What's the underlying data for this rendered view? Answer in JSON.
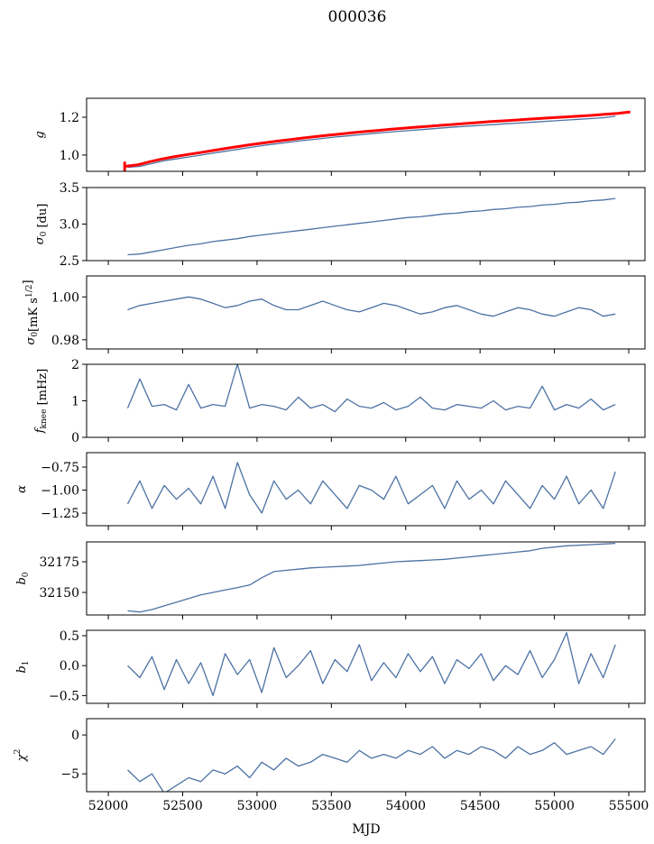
{
  "chart_data": {
    "type": "line",
    "title": "000036",
    "xlabel": "MJD",
    "xlim": [
      51854,
      55609
    ],
    "xticks": [
      52000,
      52500,
      53000,
      53500,
      54000,
      54500,
      55000,
      55500
    ],
    "colors": {
      "series": "#4c72a4",
      "truth": "#ff0000"
    },
    "panels": [
      {
        "ylabel": {
          "sym": "g",
          "sub": "",
          "sup": "",
          "unit": "",
          "italic": true
        },
        "ylim": [
          0.914,
          1.3
        ],
        "yticks": [
          1.0,
          1.2
        ],
        "ytick_labels": [
          "1.0",
          "1.2"
        ],
        "series": [
          {
            "name": "g",
            "color": "#4c72a4",
            "x_start": 52130,
            "x_step": 82,
            "values": [
              0.935,
              0.94,
              0.955,
              0.97,
              0.98,
              0.99,
              1.0,
              1.01,
              1.02,
              1.03,
              1.04,
              1.05,
              1.058,
              1.066,
              1.074,
              1.081,
              1.088,
              1.095,
              1.101,
              1.107,
              1.113,
              1.119,
              1.124,
              1.129,
              1.134,
              1.139,
              1.144,
              1.149,
              1.153,
              1.157,
              1.161,
              1.165,
              1.169,
              1.173,
              1.177,
              1.181,
              1.185,
              1.189,
              1.193,
              1.197,
              1.205
            ]
          },
          {
            "name": "g_true",
            "color": "#ff0000",
            "x_start": 52110,
            "x_step": 85,
            "thick": true,
            "errorbar": [
              0.91,
              0.965
            ],
            "values": [
              0.94,
              0.948,
              0.965,
              0.98,
              0.992,
              1.003,
              1.013,
              1.024,
              1.035,
              1.045,
              1.055,
              1.064,
              1.073,
              1.081,
              1.089,
              1.097,
              1.104,
              1.111,
              1.118,
              1.124,
              1.13,
              1.136,
              1.142,
              1.147,
              1.152,
              1.157,
              1.162,
              1.167,
              1.172,
              1.177,
              1.181,
              1.185,
              1.19,
              1.194,
              1.198,
              1.202,
              1.206,
              1.21,
              1.215,
              1.22,
              1.228
            ]
          }
        ]
      },
      {
        "ylabel": {
          "sym": "σ",
          "sub": "0",
          "sup": "",
          "unit": " [du]"
        },
        "ylim": [
          2.5,
          3.5
        ],
        "yticks": [
          2.5,
          3.0,
          3.5
        ],
        "ytick_labels": [
          "2.5",
          "3.0",
          "3.5"
        ],
        "series": [
          {
            "name": "sigma0_du",
            "color": "#4c72a4",
            "x_start": 52130,
            "x_step": 82,
            "values": [
              2.58,
              2.59,
              2.62,
              2.65,
              2.68,
              2.71,
              2.73,
              2.76,
              2.78,
              2.8,
              2.83,
              2.85,
              2.87,
              2.89,
              2.91,
              2.93,
              2.95,
              2.97,
              2.99,
              3.01,
              3.03,
              3.05,
              3.07,
              3.09,
              3.1,
              3.12,
              3.14,
              3.15,
              3.17,
              3.18,
              3.2,
              3.21,
              3.23,
              3.24,
              3.26,
              3.27,
              3.29,
              3.3,
              3.32,
              3.33,
              3.35
            ]
          }
        ]
      },
      {
        "ylabel": {
          "sym": "σ",
          "sub": "0",
          "sup": "1/2",
          "unit": "[mK s",
          "close": "]"
        },
        "ylim": [
          0.9757,
          1.0098
        ],
        "yticks": [
          0.98,
          1.0
        ],
        "ytick_labels": [
          "0.98",
          "1.00"
        ],
        "series": [
          {
            "name": "sigma0_mK",
            "color": "#4c72a4",
            "x_start": 52130,
            "x_step": 82,
            "values": [
              0.994,
              0.996,
              0.997,
              0.998,
              0.999,
              1.0,
              0.999,
              0.997,
              0.995,
              0.996,
              0.998,
              0.999,
              0.996,
              0.994,
              0.994,
              0.996,
              0.998,
              0.996,
              0.994,
              0.993,
              0.995,
              0.997,
              0.996,
              0.994,
              0.992,
              0.993,
              0.995,
              0.996,
              0.994,
              0.992,
              0.991,
              0.993,
              0.995,
              0.994,
              0.992,
              0.991,
              0.993,
              0.995,
              0.994,
              0.991,
              0.992
            ]
          }
        ]
      },
      {
        "ylabel": {
          "sym": "f",
          "sub": "knee",
          "sup": "",
          "unit": " [mHz]"
        },
        "ylim": [
          0,
          2
        ],
        "yticks": [
          0,
          1,
          2
        ],
        "ytick_labels": [
          "0",
          "1",
          "2"
        ],
        "series": [
          {
            "name": "fknee",
            "color": "#4c72a4",
            "x_start": 52130,
            "x_step": 82,
            "values": [
              0.8,
              1.6,
              0.85,
              0.9,
              0.75,
              1.45,
              0.8,
              0.9,
              0.85,
              2.0,
              0.8,
              0.9,
              0.85,
              0.75,
              1.1,
              0.8,
              0.9,
              0.7,
              1.05,
              0.85,
              0.8,
              0.95,
              0.75,
              0.85,
              1.1,
              0.8,
              0.75,
              0.9,
              0.85,
              0.8,
              1.0,
              0.75,
              0.85,
              0.8,
              1.4,
              0.75,
              0.9,
              0.8,
              1.05,
              0.75,
              0.9
            ]
          }
        ]
      },
      {
        "ylabel": {
          "sym": "α",
          "sub": "",
          "sup": "",
          "unit": "",
          "italic": true
        },
        "ylim": [
          -1.387,
          -0.593
        ],
        "yticks": [
          -1.25,
          -1.0,
          -0.75
        ],
        "ytick_labels": [
          "−1.25",
          "−1.00",
          "−0.75"
        ],
        "series": [
          {
            "name": "alpha",
            "color": "#4c72a4",
            "x_start": 52130,
            "x_step": 82,
            "values": [
              -1.15,
              -0.9,
              -1.2,
              -0.95,
              -1.1,
              -0.98,
              -1.15,
              -0.85,
              -1.2,
              -0.7,
              -1.05,
              -1.25,
              -0.9,
              -1.1,
              -1.0,
              -1.15,
              -0.9,
              -1.05,
              -1.2,
              -0.95,
              -1.0,
              -1.1,
              -0.85,
              -1.15,
              -1.05,
              -0.95,
              -1.2,
              -0.9,
              -1.1,
              -1.0,
              -1.15,
              -0.9,
              -1.05,
              -1.2,
              -0.95,
              -1.1,
              -0.85,
              -1.15,
              -1.0,
              -1.2,
              -0.8
            ]
          }
        ]
      },
      {
        "ylabel": {
          "sym": "b",
          "sub": "0",
          "sup": "",
          "unit": "",
          "italic": true
        },
        "ylim": [
          32131.6,
          32191.2
        ],
        "yticks": [
          32150,
          32175
        ],
        "ytick_labels": [
          "32150",
          "32175"
        ],
        "series": [
          {
            "name": "b0",
            "color": "#4c72a4",
            "x_start": 52130,
            "x_step": 82,
            "values": [
              32135,
              32134,
              32136,
              32139,
              32142,
              32145,
              32148,
              32150,
              32152,
              32154,
              32156,
              32162,
              32167,
              32168,
              32169,
              32170,
              32170.5,
              32171,
              32171.5,
              32172,
              32173,
              32174,
              32175,
              32175.5,
              32176,
              32176.5,
              32177,
              32178,
              32179,
              32180,
              32181,
              32182,
              32183,
              32184,
              32186,
              32187,
              32188,
              32188.5,
              32189,
              32189.5,
              32190
            ]
          }
        ]
      },
      {
        "ylabel": {
          "sym": "b",
          "sub": "1",
          "sup": "",
          "unit": "",
          "italic": true
        },
        "ylim": [
          -0.63,
          0.59
        ],
        "yticks": [
          -0.5,
          0.0,
          0.5
        ],
        "ytick_labels": [
          "−0.5",
          "0.0",
          "0.5"
        ],
        "series": [
          {
            "name": "b1",
            "color": "#4c72a4",
            "x_start": 52130,
            "x_step": 82,
            "values": [
              0.0,
              -0.2,
              0.15,
              -0.4,
              0.1,
              -0.3,
              0.05,
              -0.5,
              0.2,
              -0.15,
              0.1,
              -0.45,
              0.3,
              -0.2,
              0.0,
              0.25,
              -0.3,
              0.1,
              -0.1,
              0.35,
              -0.25,
              0.05,
              -0.2,
              0.2,
              -0.1,
              0.15,
              -0.3,
              0.1,
              -0.05,
              0.2,
              -0.25,
              0.0,
              -0.15,
              0.25,
              -0.2,
              0.1,
              0.55,
              -0.3,
              0.2,
              -0.2,
              0.35
            ]
          }
        ]
      },
      {
        "ylabel": {
          "sym": "χ",
          "sub": "",
          "sup": "2",
          "unit": "",
          "italic": true
        },
        "ylim": [
          -7.3,
          2.1
        ],
        "yticks": [
          -5,
          0
        ],
        "ytick_labels": [
          "−5",
          "0"
        ],
        "series": [
          {
            "name": "chi2",
            "color": "#4c72a4",
            "x_start": 52130,
            "x_step": 82,
            "values": [
              -4.5,
              -6,
              -5,
              -7.5,
              -6.5,
              -5.5,
              -6,
              -4.5,
              -5,
              -4,
              -5.5,
              -3.5,
              -4.5,
              -3,
              -4,
              -3.5,
              -2.5,
              -3,
              -3.5,
              -2,
              -3,
              -2.5,
              -3,
              -2,
              -2.5,
              -1.5,
              -3,
              -2,
              -2.5,
              -1.5,
              -2,
              -3,
              -1.5,
              -2.5,
              -2,
              -1,
              -2.5,
              -2,
              -1.5,
              -2.5,
              -0.5
            ]
          }
        ]
      }
    ]
  }
}
